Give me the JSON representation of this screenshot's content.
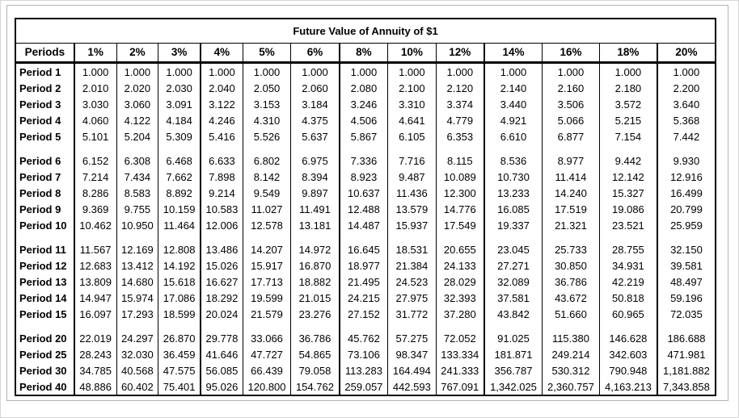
{
  "title": "Future Value of Annuity of $1",
  "table": {
    "corner_label": "Periods",
    "rate_columns": [
      "1%",
      "2%",
      "3%",
      "4%",
      "5%",
      "6%",
      "8%",
      "10%",
      "12%",
      "14%",
      "16%",
      "18%",
      "20%"
    ],
    "groups": [
      {
        "rows": [
          {
            "label": "Period 1",
            "values": [
              "1.000",
              "1.000",
              "1.000",
              "1.000",
              "1.000",
              "1.000",
              "1.000",
              "1.000",
              "1.000",
              "1.000",
              "1.000",
              "1.000",
              "1.000"
            ]
          },
          {
            "label": "Period 2",
            "values": [
              "2.010",
              "2.020",
              "2.030",
              "2.040",
              "2.050",
              "2.060",
              "2.080",
              "2.100",
              "2.120",
              "2.140",
              "2.160",
              "2.180",
              "2.200"
            ]
          },
          {
            "label": "Period 3",
            "values": [
              "3.030",
              "3.060",
              "3.091",
              "3.122",
              "3.153",
              "3.184",
              "3.246",
              "3.310",
              "3.374",
              "3.440",
              "3.506",
              "3.572",
              "3.640"
            ]
          },
          {
            "label": "Period 4",
            "values": [
              "4.060",
              "4.122",
              "4.184",
              "4.246",
              "4.310",
              "4.375",
              "4.506",
              "4.641",
              "4.779",
              "4.921",
              "5.066",
              "5.215",
              "5.368"
            ]
          },
          {
            "label": "Period 5",
            "values": [
              "5.101",
              "5.204",
              "5.309",
              "5.416",
              "5.526",
              "5.637",
              "5.867",
              "6.105",
              "6.353",
              "6.610",
              "6.877",
              "7.154",
              "7.442"
            ]
          }
        ]
      },
      {
        "rows": [
          {
            "label": "Period 6",
            "values": [
              "6.152",
              "6.308",
              "6.468",
              "6.633",
              "6.802",
              "6.975",
              "7.336",
              "7.716",
              "8.115",
              "8.536",
              "8.977",
              "9.442",
              "9.930"
            ]
          },
          {
            "label": "Period 7",
            "values": [
              "7.214",
              "7.434",
              "7.662",
              "7.898",
              "8.142",
              "8.394",
              "8.923",
              "9.487",
              "10.089",
              "10.730",
              "11.414",
              "12.142",
              "12.916"
            ]
          },
          {
            "label": "Period 8",
            "values": [
              "8.286",
              "8.583",
              "8.892",
              "9.214",
              "9.549",
              "9.897",
              "10.637",
              "11.436",
              "12.300",
              "13.233",
              "14.240",
              "15.327",
              "16.499"
            ]
          },
          {
            "label": "Period 9",
            "values": [
              "9.369",
              "9.755",
              "10.159",
              "10.583",
              "11.027",
              "11.491",
              "12.488",
              "13.579",
              "14.776",
              "16.085",
              "17.519",
              "19.086",
              "20.799"
            ]
          },
          {
            "label": "Period 10",
            "values": [
              "10.462",
              "10.950",
              "11.464",
              "12.006",
              "12.578",
              "13.181",
              "14.487",
              "15.937",
              "17.549",
              "19.337",
              "21.321",
              "23.521",
              "25.959"
            ]
          }
        ]
      },
      {
        "rows": [
          {
            "label": "Period 11",
            "values": [
              "11.567",
              "12.169",
              "12.808",
              "13.486",
              "14.207",
              "14.972",
              "16.645",
              "18.531",
              "20.655",
              "23.045",
              "25.733",
              "28.755",
              "32.150"
            ]
          },
          {
            "label": "Period 12",
            "values": [
              "12.683",
              "13.412",
              "14.192",
              "15.026",
              "15.917",
              "16.870",
              "18.977",
              "21.384",
              "24.133",
              "27.271",
              "30.850",
              "34.931",
              "39.581"
            ]
          },
          {
            "label": "Period 13",
            "values": [
              "13.809",
              "14.680",
              "15.618",
              "16.627",
              "17.713",
              "18.882",
              "21.495",
              "24.523",
              "28.029",
              "32.089",
              "36.786",
              "42.219",
              "48.497"
            ]
          },
          {
            "label": "Period 14",
            "values": [
              "14.947",
              "15.974",
              "17.086",
              "18.292",
              "19.599",
              "21.015",
              "24.215",
              "27.975",
              "32.393",
              "37.581",
              "43.672",
              "50.818",
              "59.196"
            ]
          },
          {
            "label": "Period 15",
            "values": [
              "16.097",
              "17.293",
              "18.599",
              "20.024",
              "21.579",
              "23.276",
              "27.152",
              "31.772",
              "37.280",
              "43.842",
              "51.660",
              "60.965",
              "72.035"
            ]
          }
        ]
      },
      {
        "rows": [
          {
            "label": "Period 20",
            "values": [
              "22.019",
              "24.297",
              "26.870",
              "29.778",
              "33.066",
              "36.786",
              "45.762",
              "57.275",
              "72.052",
              "91.025",
              "115.380",
              "146.628",
              "186.688"
            ]
          },
          {
            "label": "Period 25",
            "values": [
              "28.243",
              "32.030",
              "36.459",
              "41.646",
              "47.727",
              "54.865",
              "73.106",
              "98.347",
              "133.334",
              "181.871",
              "249.214",
              "342.603",
              "471.981"
            ]
          },
          {
            "label": "Period 30",
            "values": [
              "34.785",
              "40.568",
              "47.575",
              "56.085",
              "66.439",
              "79.058",
              "113.283",
              "164.494",
              "241.333",
              "356.787",
              "530.312",
              "790.948",
              "1,181.882"
            ]
          },
          {
            "label": "Period 40",
            "values": [
              "48.886",
              "60.402",
              "75.401",
              "95.026",
              "120.800",
              "154.762",
              "259.057",
              "442.593",
              "767.091",
              "1,342.025",
              "2,360.757",
              "4,163.213",
              "7,343.858"
            ]
          }
        ]
      }
    ]
  }
}
